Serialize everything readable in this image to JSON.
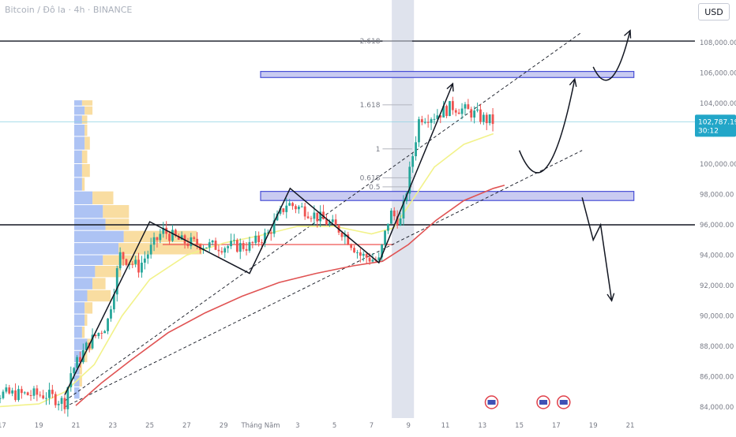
{
  "header": {
    "symbol_line": "Bitcoin / Đô la · 4h · BINANCE",
    "currency": "USD"
  },
  "price_tag": {
    "price": "102,787.19",
    "countdown": "30:12",
    "color": "#22a6c8"
  },
  "colors": {
    "up": "#26a69a",
    "down": "#ef5350",
    "ma_fast": "#f2f28a",
    "ma_slow": "#e05353",
    "zone_fill": "#c7c9f1",
    "zone_border": "#3f46d4",
    "fib_line": "#b2b5be",
    "volume_blue": "#9fb8f2",
    "volume_yellow": "#f7d58a",
    "highlight": "#b9c1d6"
  },
  "chart_data": {
    "type": "candlestick",
    "title": "",
    "y_axis": {
      "min": 83600,
      "max": 109300,
      "ticks": [
        "84,000.00",
        "86,000.00",
        "88,000.00",
        "90,000.00",
        "92,000.00",
        "94,000.00",
        "96,000.00",
        "98,000.00",
        "100,000.00",
        "102,000.00",
        "104,000.00",
        "106,000.00",
        "108,000.00"
      ],
      "tick_values": [
        84000,
        86000,
        88000,
        90000,
        92000,
        94000,
        96000,
        98000,
        100000,
        102000,
        104000,
        106000,
        108000
      ]
    },
    "x_axis": {
      "ticks": [
        "17",
        "19",
        "21",
        "23",
        "25",
        "27",
        "29",
        "Tháng Năm",
        "3",
        "5",
        "7",
        "9",
        "11",
        "13",
        "15",
        "17",
        "19",
        "21"
      ],
      "tick_days": [
        -14,
        -12,
        -10,
        -8,
        -6,
        -4,
        -2,
        0,
        2,
        4,
        6,
        8,
        10,
        12,
        14,
        16,
        18,
        20
      ]
    },
    "horizontal_lines": [
      108100,
      96000
    ],
    "zones": [
      {
        "day_start": 0,
        "day_end": 20.2,
        "low": 105700,
        "high": 106100
      },
      {
        "day_start": 0,
        "day_end": 20.2,
        "low": 97600,
        "high": 98200
      }
    ],
    "fib_levels": [
      {
        "label": "2.618",
        "value": 108100
      },
      {
        "label": "1.618",
        "value": 103900
      },
      {
        "label": "1",
        "value": 101000
      },
      {
        "label": "0.618",
        "value": 99100
      },
      {
        "label": "0.5",
        "value": 98500
      }
    ],
    "support_line": {
      "value": 94700,
      "day_start": -5.3,
      "day_end": 7.2
    },
    "candle_series_days": [
      -15.6,
      12.6
    ],
    "anchors": [
      {
        "day": -15.6,
        "close": 84900
      },
      {
        "day": -11.6,
        "close": 84800
      },
      {
        "day": -10.6,
        "close": 84300
      },
      {
        "day": -10.3,
        "close": 86200
      },
      {
        "day": -9.3,
        "close": 88200
      },
      {
        "day": -8.3,
        "close": 89500
      },
      {
        "day": -7.6,
        "close": 94000
      },
      {
        "day": -6.6,
        "close": 93200
      },
      {
        "day": -5.3,
        "close": 95600
      },
      {
        "day": -4.3,
        "close": 94900
      },
      {
        "day": -2.6,
        "close": 94600
      },
      {
        "day": -0.6,
        "close": 94600
      },
      {
        "day": 0.4,
        "close": 95400
      },
      {
        "day": 1.4,
        "close": 97400
      },
      {
        "day": 2.4,
        "close": 97000
      },
      {
        "day": 4.4,
        "close": 95600
      },
      {
        "day": 5.4,
        "close": 94000
      },
      {
        "day": 6.4,
        "close": 93600
      },
      {
        "day": 7.0,
        "close": 96800
      },
      {
        "day": 7.6,
        "close": 96200
      },
      {
        "day": 8.0,
        "close": 99000
      },
      {
        "day": 8.6,
        "close": 103100
      },
      {
        "day": 9.4,
        "close": 103200
      },
      {
        "day": 10.4,
        "close": 103800
      },
      {
        "day": 11.4,
        "close": 103400
      },
      {
        "day": 12.0,
        "close": 103000
      },
      {
        "day": 12.6,
        "close": 102800
      }
    ],
    "ma_fast": [
      {
        "day": -15.6,
        "v": 83900
      },
      {
        "day": -12.0,
        "v": 84200
      },
      {
        "day": -10.6,
        "v": 85000
      },
      {
        "day": -9.0,
        "v": 86800
      },
      {
        "day": -7.5,
        "v": 90000
      },
      {
        "day": -6.0,
        "v": 92400
      },
      {
        "day": -4.0,
        "v": 94000
      },
      {
        "day": -2.0,
        "v": 94800
      },
      {
        "day": 0.0,
        "v": 95300
      },
      {
        "day": 2.0,
        "v": 95900
      },
      {
        "day": 4.0,
        "v": 95900
      },
      {
        "day": 6.0,
        "v": 95400
      },
      {
        "day": 7.2,
        "v": 95800
      },
      {
        "day": 8.2,
        "v": 97600
      },
      {
        "day": 9.4,
        "v": 99800
      },
      {
        "day": 11.0,
        "v": 101300
      },
      {
        "day": 12.6,
        "v": 102000
      }
    ],
    "ma_slow": [
      {
        "day": -10.0,
        "v": 84100
      },
      {
        "day": -8.6,
        "v": 85600
      },
      {
        "day": -7.0,
        "v": 87100
      },
      {
        "day": -5.0,
        "v": 88900
      },
      {
        "day": -3.0,
        "v": 90200
      },
      {
        "day": -1.0,
        "v": 91300
      },
      {
        "day": 1.0,
        "v": 92200
      },
      {
        "day": 3.0,
        "v": 92800
      },
      {
        "day": 5.0,
        "v": 93300
      },
      {
        "day": 6.6,
        "v": 93600
      },
      {
        "day": 8.0,
        "v": 94700
      },
      {
        "day": 9.5,
        "v": 96300
      },
      {
        "day": 11.0,
        "v": 97600
      },
      {
        "day": 12.6,
        "v": 98400
      },
      {
        "day": 13.2,
        "v": 98600
      }
    ],
    "channel_lines": [
      {
        "from": {
          "day": -10.6,
          "v": 84000
        },
        "to": {
          "day": 17.4,
          "v": 100900
        }
      },
      {
        "from": {
          "day": -10.6,
          "v": 84400
        },
        "to": {
          "day": 17.4,
          "v": 108700
        }
      }
    ],
    "zigzag_path": [
      {
        "day": -10.6,
        "v": 84800
      },
      {
        "day": -6.0,
        "v": 96200
      },
      {
        "day": -0.6,
        "v": 92800
      },
      {
        "day": 1.6,
        "v": 98400
      },
      {
        "day": 6.4,
        "v": 93500
      },
      {
        "day": 10.4,
        "v": 105300
      }
    ],
    "projected_paths": [
      {
        "points": [
          {
            "day": 14.0,
            "v": 100900
          },
          {
            "day": 15.5,
            "v": 98500
          },
          {
            "day": 17.0,
            "v": 105600
          }
        ],
        "arrow": true
      },
      {
        "points": [
          {
            "day": 18.0,
            "v": 106400
          },
          {
            "day": 19.0,
            "v": 105900
          },
          {
            "day": 20.0,
            "v": 108800
          }
        ],
        "arrow": true
      },
      {
        "points": [
          {
            "day": 17.4,
            "v": 97800
          },
          {
            "day": 18.0,
            "v": 95000
          },
          {
            "day": 18.4,
            "v": 96000
          },
          {
            "day": 19.0,
            "v": 91000
          }
        ],
        "arrow": true
      }
    ],
    "highlight_band_days": [
      7.1,
      8.3
    ],
    "event_markers_days": [
      12.5,
      15.3,
      16.4
    ],
    "volume_profile": [
      {
        "price_low": 103800,
        "price_high": 104200,
        "blue": 3,
        "yellow": 4
      },
      {
        "price_low": 103200,
        "price_high": 103800,
        "blue": 4,
        "yellow": 3
      },
      {
        "price_low": 102600,
        "price_high": 103200,
        "blue": 3,
        "yellow": 2
      },
      {
        "price_low": 101800,
        "price_high": 102600,
        "blue": 4,
        "yellow": 1
      },
      {
        "price_low": 100900,
        "price_high": 101800,
        "blue": 4,
        "yellow": 2
      },
      {
        "price_low": 100000,
        "price_high": 100900,
        "blue": 3,
        "yellow": 2
      },
      {
        "price_low": 99100,
        "price_high": 100000,
        "blue": 3,
        "yellow": 3
      },
      {
        "price_low": 98200,
        "price_high": 99100,
        "blue": 3,
        "yellow": 1
      },
      {
        "price_low": 97300,
        "price_high": 98200,
        "blue": 7,
        "yellow": 8
      },
      {
        "price_low": 96400,
        "price_high": 97300,
        "blue": 11,
        "yellow": 10
      },
      {
        "price_low": 95600,
        "price_high": 96400,
        "blue": 12,
        "yellow": 9
      },
      {
        "price_low": 94800,
        "price_high": 95600,
        "blue": 19,
        "yellow": 28
      },
      {
        "price_low": 94000,
        "price_high": 94800,
        "blue": 17,
        "yellow": 32
      },
      {
        "price_low": 93300,
        "price_high": 94000,
        "blue": 11,
        "yellow": 14
      },
      {
        "price_low": 92500,
        "price_high": 93300,
        "blue": 8,
        "yellow": 10
      },
      {
        "price_low": 91700,
        "price_high": 92500,
        "blue": 7,
        "yellow": 5
      },
      {
        "price_low": 90900,
        "price_high": 91700,
        "blue": 5,
        "yellow": 9
      },
      {
        "price_low": 90100,
        "price_high": 90900,
        "blue": 4,
        "yellow": 3
      },
      {
        "price_low": 89300,
        "price_high": 90100,
        "blue": 4,
        "yellow": 1
      },
      {
        "price_low": 88500,
        "price_high": 89300,
        "blue": 3,
        "yellow": 1
      },
      {
        "price_low": 87700,
        "price_high": 88500,
        "blue": 5,
        "yellow": 2
      },
      {
        "price_low": 86900,
        "price_high": 87700,
        "blue": 3,
        "yellow": 2
      },
      {
        "price_low": 86100,
        "price_high": 86900,
        "blue": 2,
        "yellow": 1
      },
      {
        "price_low": 85300,
        "price_high": 86100,
        "blue": 2,
        "yellow": 1
      },
      {
        "price_low": 84500,
        "price_high": 85300,
        "blue": 2,
        "yellow": 0
      }
    ]
  }
}
